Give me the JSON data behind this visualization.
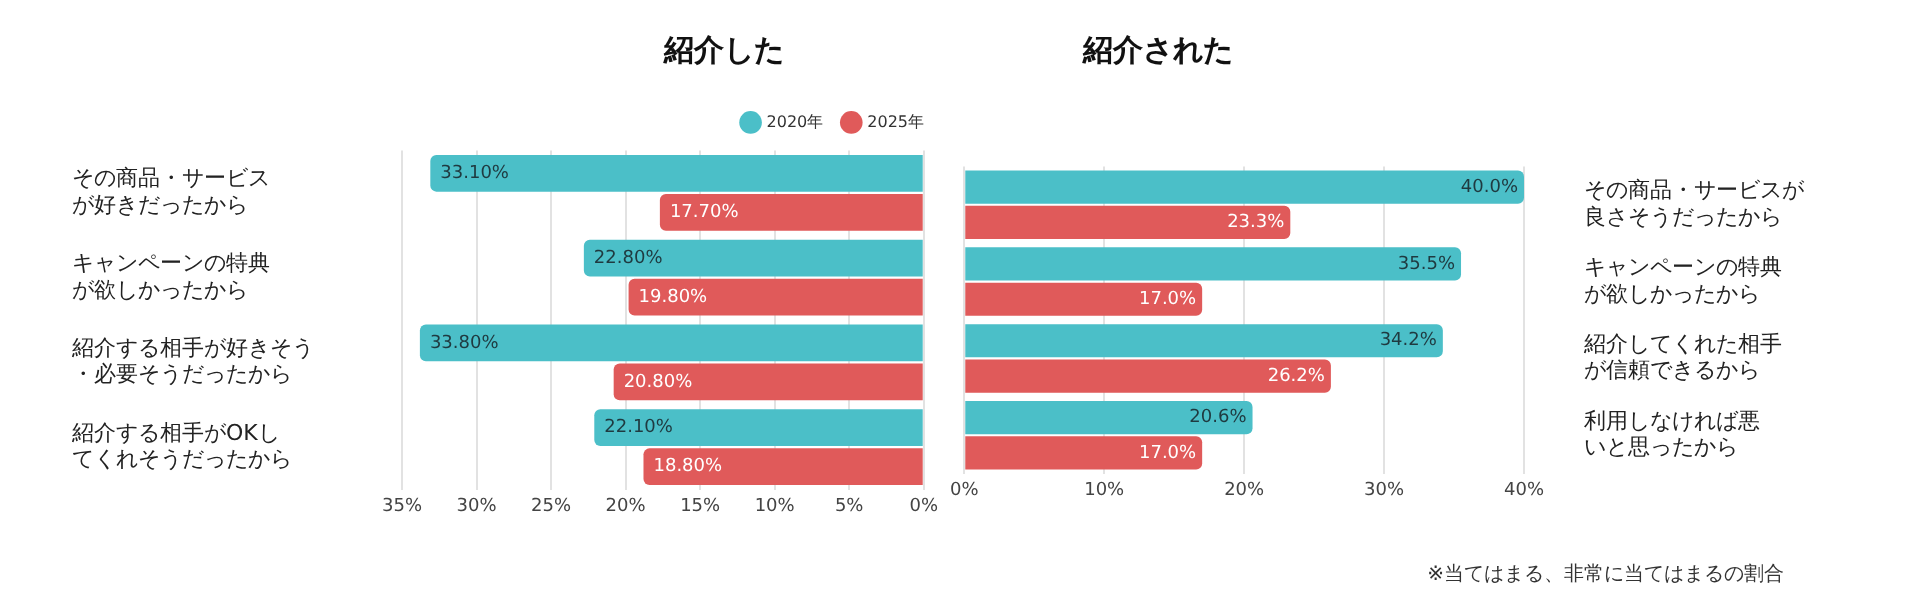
{
  "chart_data": [
    {
      "type": "bar",
      "orientation": "horizontal",
      "title": "紹介した",
      "categories": [
        "その商品・サービスが好きだったから",
        "キャンペーンの特典が欲しかったから",
        "紹介する相手が好きそう・必要そうだったから",
        "紹介する相手がOKしてくれそうだったから"
      ],
      "series": [
        {
          "name": "2020年",
          "color": "#4bbfc8",
          "values": [
            33.1,
            22.8,
            33.8,
            22.1
          ],
          "value_labels": [
            "33.10%",
            "22.80%",
            "33.80%",
            "22.10%"
          ]
        },
        {
          "name": "2025年",
          "color": "#e05a5a",
          "values": [
            17.7,
            19.8,
            20.8,
            18.8
          ],
          "value_labels": [
            "17.70%",
            "19.80%",
            "20.80%",
            "18.80%"
          ]
        }
      ],
      "xlim": [
        35,
        0
      ],
      "xticks": [
        {
          "value": 35,
          "label": "35%"
        },
        {
          "value": 30,
          "label": "30%"
        },
        {
          "value": 25,
          "label": "25%"
        },
        {
          "value": 20,
          "label": "20%"
        },
        {
          "value": 15,
          "label": "15%"
        },
        {
          "value": 10,
          "label": "10%"
        },
        {
          "value": 5,
          "label": "5%"
        },
        {
          "value": 0,
          "label": "0%"
        }
      ],
      "grid": "x",
      "legend": "top right"
    },
    {
      "type": "bar",
      "orientation": "horizontal",
      "title": "紹介された",
      "categories": [
        "その商品・サービスが良さそうだったから",
        "キャンペーンの特典が欲しかったから",
        "紹介してくれた相手が信頼できるから",
        "利用しなければ悪いと思ったから"
      ],
      "series": [
        {
          "color": "#4bbfc8",
          "values": [
            40.0,
            35.5,
            34.2,
            20.6
          ],
          "value_labels": [
            "40.0%",
            "35.5%",
            "34.2%",
            "20.6%"
          ]
        },
        {
          "color": "#e05a5a",
          "values": [
            23.3,
            17.0,
            26.2,
            17.0
          ],
          "value_labels": [
            "23.3%",
            "17.0%",
            "26.2%",
            "17.0%"
          ]
        }
      ],
      "xlim": [
        0,
        40
      ],
      "xticks": [
        {
          "value": 0,
          "label": "0%"
        },
        {
          "value": 10,
          "label": "10%"
        },
        {
          "value": 20,
          "label": "20%"
        },
        {
          "value": 30,
          "label": "30%"
        },
        {
          "value": 40,
          "label": "40%"
        }
      ],
      "grid": "x",
      "annotations": [
        "※当てはまる、非常に当てはまるの割合"
      ]
    }
  ]
}
